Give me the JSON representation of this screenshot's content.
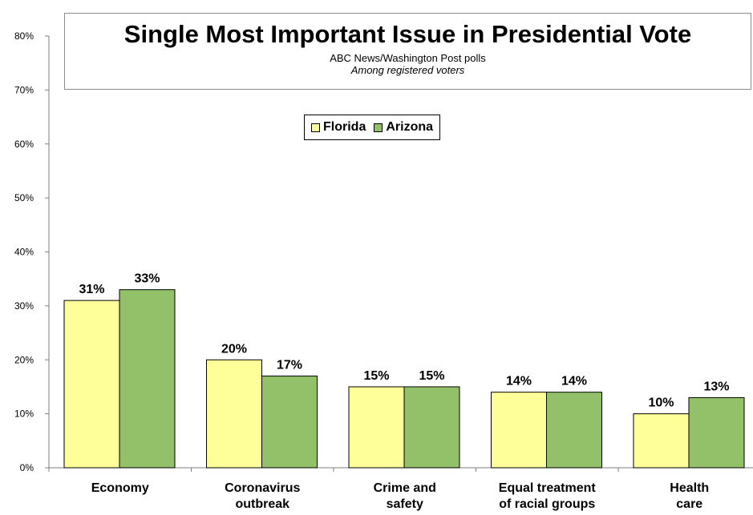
{
  "colors": {
    "florida": "#ffff99",
    "arizona": "#92c169",
    "outline": "#000000"
  },
  "title_block": {
    "title": "Single Most Important Issue in Presidential Vote",
    "subtitle": "ABC News/Washington Post polls",
    "subtitle2": "Among registered voters"
  },
  "chart_data": {
    "type": "bar",
    "title": "Single Most Important Issue in Presidential Vote",
    "subtitle": "ABC News/Washington Post polls",
    "categories": [
      [
        "Economy"
      ],
      [
        "Coronavirus",
        "outbreak"
      ],
      [
        "Crime and",
        "safety"
      ],
      [
        "Equal treatment",
        "of racial groups"
      ],
      [
        "Health",
        "care"
      ]
    ],
    "series": [
      {
        "name": "Florida",
        "values": [
          31,
          20,
          15,
          14,
          10
        ],
        "labels": [
          "31%",
          "20%",
          "15%",
          "14%",
          "10%"
        ]
      },
      {
        "name": "Arizona",
        "values": [
          33,
          17,
          15,
          14,
          13
        ],
        "labels": [
          "33%",
          "17%",
          "15%",
          "14%",
          "13%"
        ]
      }
    ],
    "ylim": [
      0,
      80
    ],
    "yticks": [
      0,
      10,
      20,
      30,
      40,
      50,
      60,
      70,
      80
    ],
    "ytick_labels": [
      "0%",
      "10%",
      "20%",
      "30%",
      "40%",
      "50%",
      "60%",
      "70%",
      "80%"
    ],
    "legend": "top-center",
    "grid": false
  }
}
